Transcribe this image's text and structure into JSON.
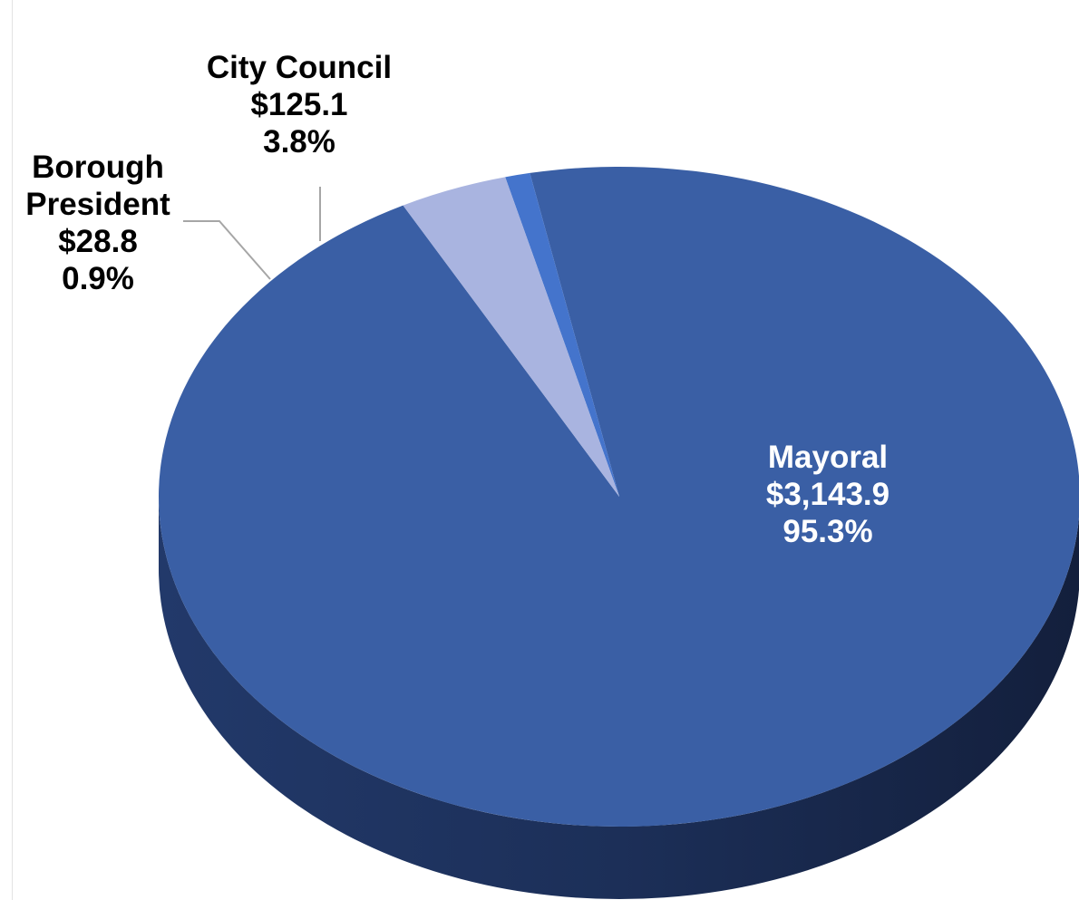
{
  "chart_data": {
    "type": "pie",
    "title": "",
    "start_angle_deg": 118,
    "series": [
      {
        "name": "Mayoral",
        "value": 3143.9,
        "value_label": "$3,143.9",
        "percent": 95.3,
        "percent_label": "95.3%",
        "color": "#3a5fa5",
        "label_lines": [
          "Mayoral",
          "$3,143.9",
          "95.3%"
        ],
        "label_color": "#ffffff"
      },
      {
        "name": "Borough President",
        "value": 28.8,
        "value_label": "$28.8",
        "percent": 0.9,
        "percent_label": "0.9%",
        "color": "#4474cc",
        "label_lines": [
          "Borough",
          "President",
          "$28.8",
          "0.9%"
        ],
        "label_color": "#000000"
      },
      {
        "name": "City Council",
        "value": 125.1,
        "value_label": "$125.1",
        "percent": 3.8,
        "percent_label": "3.8%",
        "color": "#a9b4e0",
        "label_lines": [
          "City Council",
          "$125.1",
          "3.8%"
        ],
        "label_color": "#000000"
      }
    ],
    "style": {
      "rendering": "3d-tilted",
      "side_color_dark": "#162444",
      "side_color_mid": "#2b4680",
      "leader_line_color": "#a6a6a6"
    }
  }
}
